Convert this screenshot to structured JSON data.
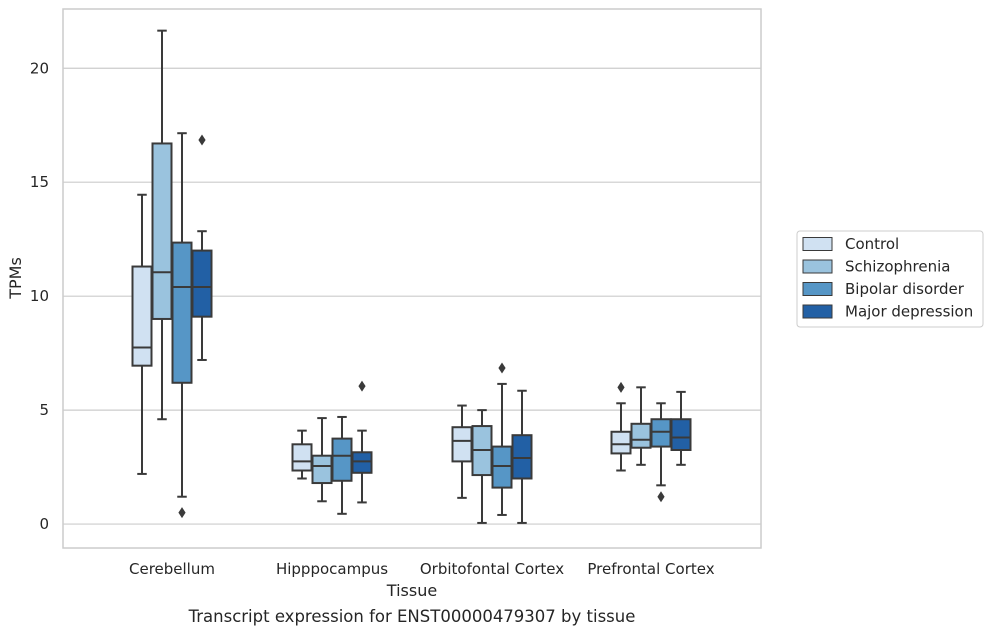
{
  "chart_data": {
    "type": "box",
    "title": "",
    "caption": "Transcript expression for ENST00000479307 by tissue",
    "xlabel": "Tissue",
    "ylabel": "TPMs",
    "ylim": [
      -1.05,
      22.6
    ],
    "yticks": [
      0,
      5,
      10,
      15,
      20
    ],
    "grid": "horizontal",
    "legend_position": "right",
    "categories": [
      "Cerebellum",
      "Hipppocampus",
      "Orbitofontal Cortex",
      "Prefrontal Cortex"
    ],
    "series": [
      {
        "name": "Control",
        "color": "#d0e1f2",
        "boxes": [
          {
            "whislo": 2.2,
            "q1": 6.95,
            "med": 7.75,
            "q3": 11.3,
            "whishi": 14.45,
            "fliers": []
          },
          {
            "whislo": 2.0,
            "q1": 2.35,
            "med": 2.75,
            "q3": 3.5,
            "whishi": 4.1,
            "fliers": []
          },
          {
            "whislo": 1.15,
            "q1": 2.75,
            "med": 3.65,
            "q3": 4.25,
            "whishi": 5.2,
            "fliers": []
          },
          {
            "whislo": 2.35,
            "q1": 3.1,
            "med": 3.5,
            "q3": 4.05,
            "whishi": 5.3,
            "fliers": [
              6.0
            ]
          }
        ]
      },
      {
        "name": "Schizophrenia",
        "color": "#9ac3de",
        "boxes": [
          {
            "whislo": 4.6,
            "q1": 9.0,
            "med": 11.05,
            "q3": 16.7,
            "whishi": 21.65,
            "fliers": []
          },
          {
            "whislo": 1.0,
            "q1": 1.8,
            "med": 2.55,
            "q3": 3.0,
            "whishi": 4.65,
            "fliers": []
          },
          {
            "whislo": 0.05,
            "q1": 2.15,
            "med": 3.25,
            "q3": 4.3,
            "whishi": 5.0,
            "fliers": []
          },
          {
            "whislo": 2.6,
            "q1": 3.35,
            "med": 3.7,
            "q3": 4.4,
            "whishi": 6.0,
            "fliers": []
          }
        ]
      },
      {
        "name": "Bipolar disorder",
        "color": "#5696c6",
        "boxes": [
          {
            "whislo": 1.2,
            "q1": 6.2,
            "med": 10.4,
            "q3": 12.35,
            "whishi": 17.15,
            "fliers": [
              0.5
            ]
          },
          {
            "whislo": 0.45,
            "q1": 1.9,
            "med": 3.0,
            "q3": 3.75,
            "whishi": 4.7,
            "fliers": []
          },
          {
            "whislo": 0.4,
            "q1": 1.6,
            "med": 2.55,
            "q3": 3.4,
            "whishi": 6.15,
            "fliers": [
              6.85
            ]
          },
          {
            "whislo": 1.7,
            "q1": 3.4,
            "med": 4.05,
            "q3": 4.6,
            "whishi": 5.3,
            "fliers": [
              1.2
            ]
          }
        ]
      },
      {
        "name": "Major depression",
        "color": "#2260a5",
        "boxes": [
          {
            "whislo": 7.2,
            "q1": 9.1,
            "med": 10.4,
            "q3": 12.0,
            "whishi": 12.85,
            "fliers": [
              16.85
            ]
          },
          {
            "whislo": 0.95,
            "q1": 2.25,
            "med": 2.75,
            "q3": 3.15,
            "whishi": 4.1,
            "fliers": [
              6.05
            ]
          },
          {
            "whislo": 0.05,
            "q1": 2.0,
            "med": 2.9,
            "q3": 3.9,
            "whishi": 5.85,
            "fliers": []
          },
          {
            "whislo": 2.6,
            "q1": 3.25,
            "med": 3.8,
            "q3": 4.6,
            "whishi": 5.8,
            "fliers": []
          }
        ]
      }
    ]
  }
}
